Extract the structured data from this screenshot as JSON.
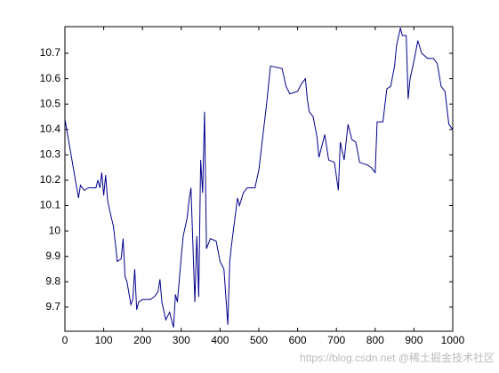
{
  "chart_data": {
    "type": "line",
    "x": [
      0,
      35,
      40,
      50,
      60,
      80,
      85,
      90,
      95,
      100,
      105,
      110,
      120,
      125,
      135,
      145,
      150,
      155,
      160,
      170,
      175,
      180,
      185,
      190,
      200,
      220,
      230,
      240,
      245,
      250,
      260,
      270,
      280,
      285,
      290,
      300,
      305,
      315,
      320,
      325,
      335,
      340,
      345,
      350,
      355,
      360,
      365,
      375,
      390,
      400,
      410,
      420,
      425,
      430,
      440,
      445,
      450,
      460,
      470,
      490,
      500,
      510,
      520,
      530,
      560,
      570,
      580,
      600,
      610,
      620,
      625,
      630,
      640,
      650,
      655,
      670,
      680,
      695,
      705,
      710,
      720,
      730,
      740,
      750,
      760,
      780,
      790,
      800,
      805,
      820,
      830,
      840,
      850,
      855,
      865,
      870,
      880,
      885,
      890,
      900,
      910,
      920,
      935,
      950,
      960,
      970,
      980,
      990,
      1000
    ],
    "series": [
      {
        "color": "#00008b",
        "values": [
          10.44,
          10.13,
          10.18,
          10.16,
          10.17,
          10.17,
          10.2,
          10.17,
          10.23,
          10.14,
          10.22,
          10.12,
          10.05,
          10.02,
          9.88,
          9.89,
          9.97,
          9.82,
          9.8,
          9.71,
          9.73,
          9.85,
          9.69,
          9.72,
          9.73,
          9.73,
          9.74,
          9.76,
          9.81,
          9.72,
          9.65,
          9.68,
          9.62,
          9.75,
          9.72,
          9.9,
          9.98,
          10.05,
          10.12,
          10.17,
          9.72,
          9.98,
          9.74,
          10.28,
          10.15,
          10.47,
          9.93,
          9.97,
          9.96,
          9.88,
          9.85,
          9.63,
          9.88,
          9.95,
          10.07,
          10.13,
          10.1,
          10.15,
          10.17,
          10.17,
          10.24,
          10.37,
          10.5,
          10.65,
          10.64,
          10.57,
          10.54,
          10.55,
          10.58,
          10.6,
          10.52,
          10.47,
          10.45,
          10.37,
          10.29,
          10.38,
          10.28,
          10.27,
          10.16,
          10.35,
          10.28,
          10.42,
          10.36,
          10.35,
          10.27,
          10.26,
          10.25,
          10.23,
          10.43,
          10.43,
          10.56,
          10.57,
          10.65,
          10.73,
          10.8,
          10.77,
          10.77,
          10.52,
          10.6,
          10.67,
          10.75,
          10.7,
          10.68,
          10.68,
          10.66,
          10.57,
          10.55,
          10.42,
          10.4
        ]
      }
    ],
    "xlim": [
      0,
      1000
    ],
    "xticks": [
      0,
      100,
      200,
      300,
      400,
      500,
      600,
      700,
      800,
      900,
      1000
    ],
    "ylim": [
      9.605,
      10.805
    ],
    "yticks": [
      9.7,
      9.8,
      9.9,
      10,
      10.1,
      10.2,
      10.3,
      10.4,
      10.5,
      10.6,
      10.7
    ],
    "watermark": "https://blog.csdn.net @稀土掘金技术社区"
  }
}
